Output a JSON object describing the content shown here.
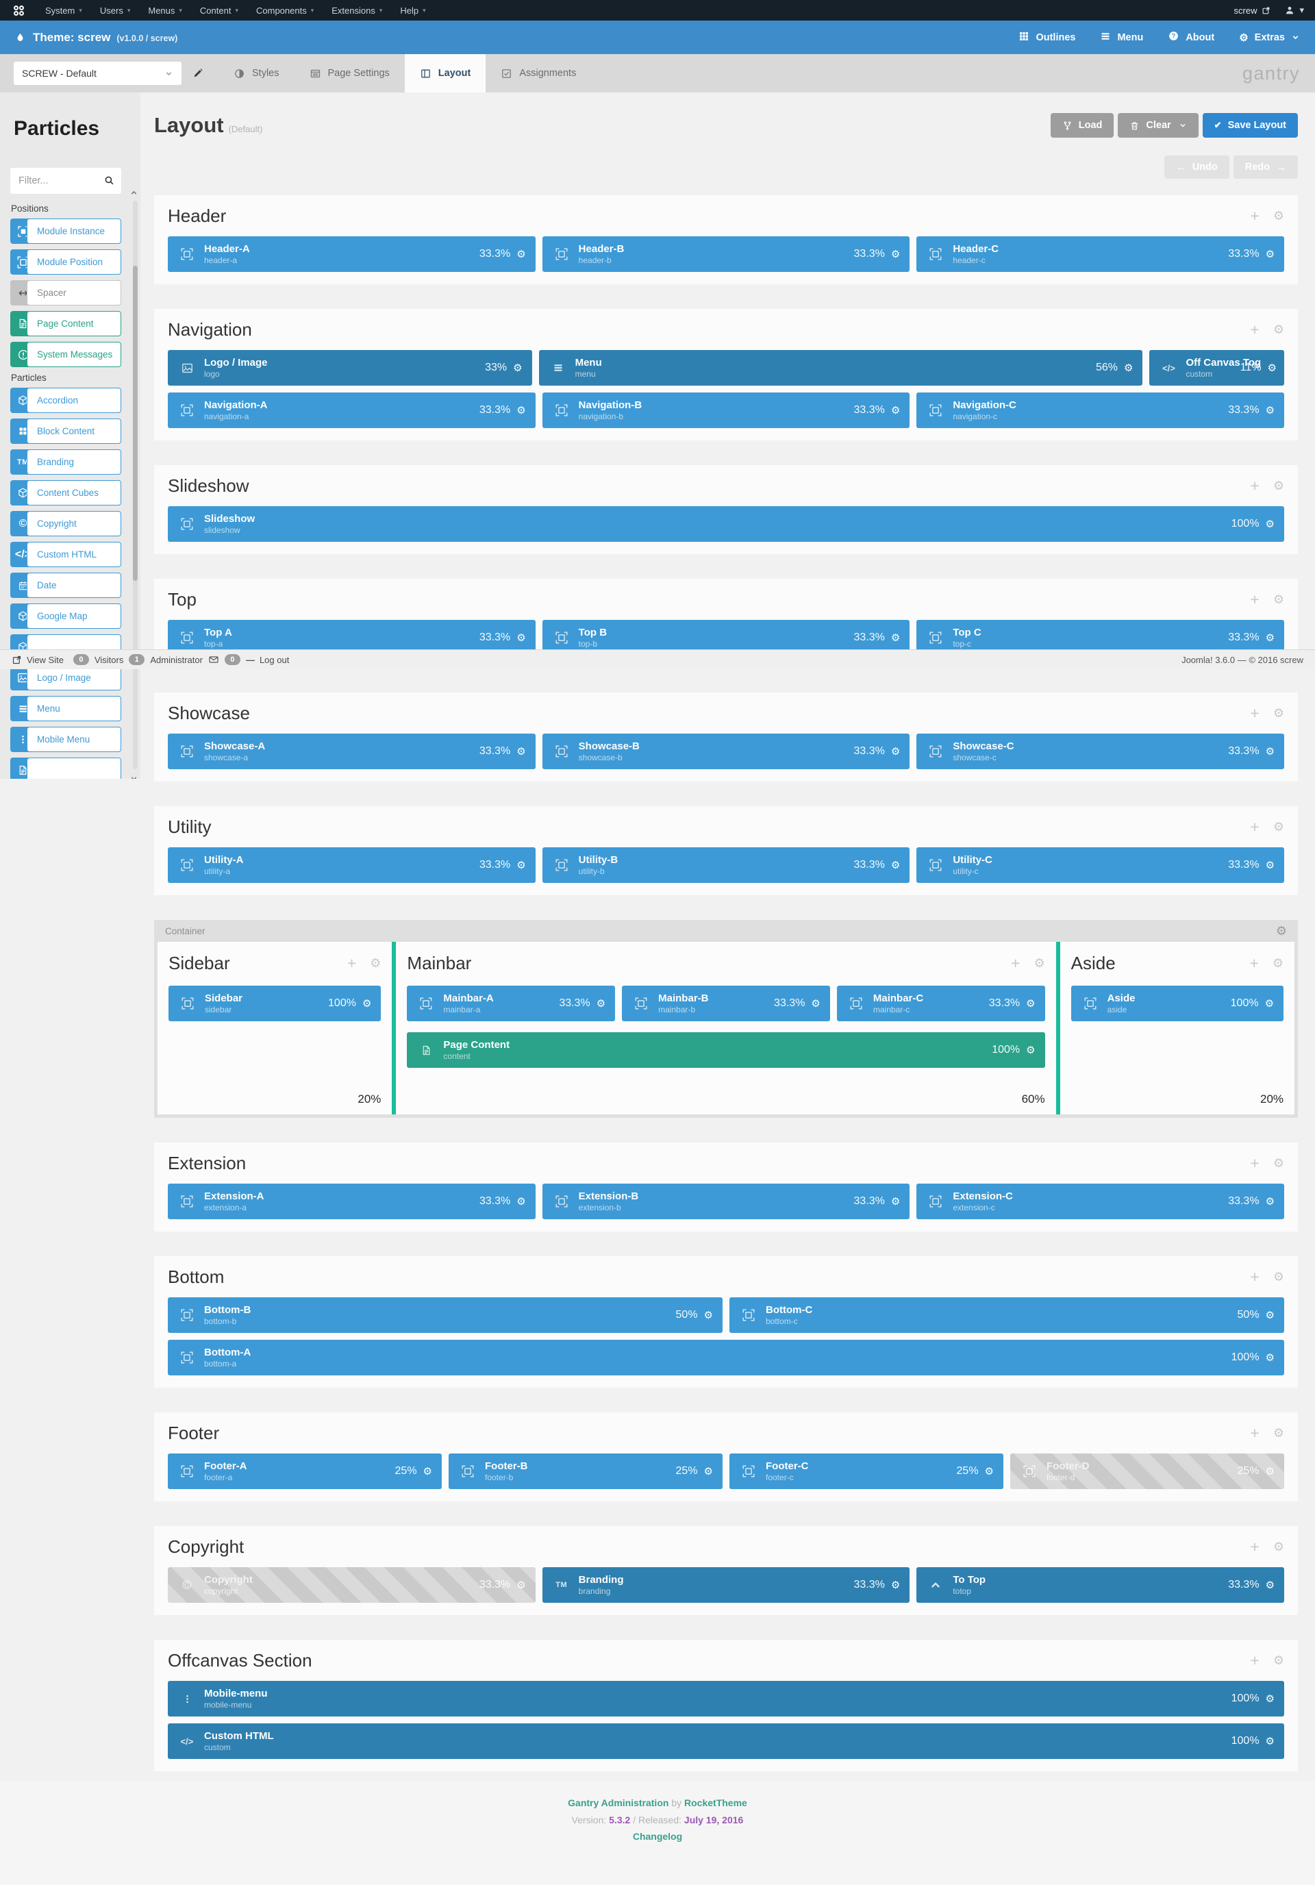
{
  "colors": {
    "position_blue": "#3d9ad6",
    "particle_blue": "#2e80b1",
    "content_green": "#2aa38a",
    "divider_teal": "#1abc9c",
    "save_blue": "#2f87d0",
    "header_blue": "#3e8cca",
    "footer_teal": "#3aa08d",
    "footer_purple": "#9c57b6"
  },
  "admin_nav": {
    "menus": [
      "System",
      "Users",
      "Menus",
      "Content",
      "Components",
      "Extensions",
      "Help"
    ],
    "site_link": "screw"
  },
  "theme_bar": {
    "title": "Theme: screw",
    "version": "(v1.0.0 / screw)",
    "actions": [
      "Outlines",
      "Menu",
      "About",
      "Extras"
    ]
  },
  "toolbar": {
    "outline_select": "SCREW - Default",
    "tabs": [
      "Styles",
      "Page Settings",
      "Layout",
      "Assignments"
    ],
    "active_tab": "Layout",
    "brand": "gantry"
  },
  "sidebar": {
    "title": "Particles",
    "filter_placeholder": "Filter...",
    "groups": [
      {
        "label": "Positions",
        "items": [
          {
            "label": "Module Instance",
            "style": "blue",
            "icon": "module-instance-icon"
          },
          {
            "label": "Module Position",
            "style": "blue",
            "icon": "module-position-icon"
          },
          {
            "label": "Spacer",
            "style": "gray",
            "icon": "arrows-horizontal-icon"
          },
          {
            "label": "Page Content",
            "style": "green",
            "icon": "document-icon"
          },
          {
            "label": "System Messages",
            "style": "green",
            "icon": "exclamation-icon"
          }
        ]
      },
      {
        "label": "Particles",
        "items": [
          {
            "label": "Accordion",
            "style": "blue",
            "icon": "cube-icon"
          },
          {
            "label": "Block Content",
            "style": "blue",
            "icon": "grid-icon"
          },
          {
            "label": "Branding",
            "style": "blue",
            "icon": "trademark-icon"
          },
          {
            "label": "Content Cubes",
            "style": "blue",
            "icon": "cube-icon"
          },
          {
            "label": "Copyright",
            "style": "blue",
            "icon": "copyright-icon"
          },
          {
            "label": "Custom HTML",
            "style": "blue",
            "icon": "code-icon"
          },
          {
            "label": "Date",
            "style": "blue",
            "icon": "calendar-icon"
          },
          {
            "label": "Google Map",
            "style": "blue",
            "icon": "cube-icon"
          },
          {
            "label": "",
            "style": "blue",
            "icon": "cube-icon"
          },
          {
            "label": "Logo / Image",
            "style": "blue",
            "icon": "image-icon"
          },
          {
            "label": "Menu",
            "style": "blue",
            "icon": "menu-icon"
          },
          {
            "label": "Mobile Menu",
            "style": "blue",
            "icon": "dots-vertical-icon"
          },
          {
            "label": "",
            "style": "blue",
            "icon": "document-icon"
          }
        ]
      }
    ]
  },
  "statusbar": {
    "view_site": "View Site",
    "visitors_count": "0",
    "visitors_label": "Visitors",
    "admin_count": "1",
    "admin_label": "Administrator",
    "messages_count": "0",
    "logout": "Log out",
    "right": "Joomla! 3.6.0 — © 2016 screw"
  },
  "layout": {
    "title": "Layout",
    "subtitle": "(Default)",
    "buttons": {
      "load": "Load",
      "clear": "Clear",
      "save": "Save Layout",
      "undo": "Undo",
      "redo": "Redo"
    },
    "blocks": [
      {
        "type": "section",
        "title": "Header",
        "rows": [
          [
            {
              "title": "Header-A",
              "subtitle": "header-a",
              "percent": "33.3%",
              "style": "position",
              "icon": "module-position-icon"
            },
            {
              "title": "Header-B",
              "subtitle": "header-b",
              "percent": "33.3%",
              "style": "position",
              "icon": "module-position-icon"
            },
            {
              "title": "Header-C",
              "subtitle": "header-c",
              "percent": "33.3%",
              "style": "position",
              "icon": "module-position-icon"
            }
          ]
        ]
      },
      {
        "type": "section",
        "title": "Navigation",
        "rows": [
          [
            {
              "title": "Logo / Image",
              "subtitle": "logo",
              "percent": "33%",
              "style": "particle",
              "icon": "image-icon"
            },
            {
              "title": "Menu",
              "subtitle": "menu",
              "percent": "56%",
              "style": "particle",
              "icon": "menu-icon"
            },
            {
              "title": "Off Canvas Tog",
              "subtitle": "custom",
              "percent": "11%",
              "style": "particle",
              "icon": "code-icon",
              "overlap": true
            }
          ],
          [
            {
              "title": "Navigation-A",
              "subtitle": "navigation-a",
              "percent": "33.3%",
              "style": "position",
              "icon": "module-position-icon"
            },
            {
              "title": "Navigation-B",
              "subtitle": "navigation-b",
              "percent": "33.3%",
              "style": "position",
              "icon": "module-position-icon"
            },
            {
              "title": "Navigation-C",
              "subtitle": "navigation-c",
              "percent": "33.3%",
              "style": "position",
              "icon": "module-position-icon"
            }
          ]
        ]
      },
      {
        "type": "section",
        "title": "Slideshow",
        "rows": [
          [
            {
              "title": "Slideshow",
              "subtitle": "slideshow",
              "percent": "100%",
              "style": "position",
              "icon": "module-position-icon"
            }
          ]
        ]
      },
      {
        "type": "section",
        "title": "Top",
        "rows": [
          [
            {
              "title": "Top A",
              "subtitle": "top-a",
              "percent": "33.3%",
              "style": "position",
              "icon": "module-position-icon"
            },
            {
              "title": "Top B",
              "subtitle": "top-b",
              "percent": "33.3%",
              "style": "position",
              "icon": "module-position-icon"
            },
            {
              "title": "Top C",
              "subtitle": "top-c",
              "percent": "33.3%",
              "style": "position",
              "icon": "module-position-icon"
            }
          ]
        ]
      },
      {
        "type": "section",
        "title": "Showcase",
        "rows": [
          [
            {
              "title": "Showcase-A",
              "subtitle": "showcase-a",
              "percent": "33.3%",
              "style": "position",
              "icon": "module-position-icon"
            },
            {
              "title": "Showcase-B",
              "subtitle": "showcase-b",
              "percent": "33.3%",
              "style": "position",
              "icon": "module-position-icon"
            },
            {
              "title": "Showcase-C",
              "subtitle": "showcase-c",
              "percent": "33.3%",
              "style": "position",
              "icon": "module-position-icon"
            }
          ]
        ]
      },
      {
        "type": "section",
        "title": "Utility",
        "rows": [
          [
            {
              "title": "Utility-A",
              "subtitle": "utility-a",
              "percent": "33.3%",
              "style": "position",
              "icon": "module-position-icon"
            },
            {
              "title": "Utility-B",
              "subtitle": "utility-b",
              "percent": "33.3%",
              "style": "position",
              "icon": "module-position-icon"
            },
            {
              "title": "Utility-C",
              "subtitle": "utility-c",
              "percent": "33.3%",
              "style": "position",
              "icon": "module-position-icon"
            }
          ]
        ]
      },
      {
        "type": "container",
        "label": "Container",
        "panels": [
          {
            "title": "Sidebar",
            "size": "20%",
            "size_value": 20,
            "rows": [
              [
                {
                  "title": "Sidebar",
                  "subtitle": "sidebar",
                  "percent": "100%",
                  "style": "position",
                  "icon": "module-position-icon"
                }
              ]
            ]
          },
          {
            "title": "Mainbar",
            "size": "60%",
            "size_value": 60,
            "rows": [
              [
                {
                  "title": "Mainbar-A",
                  "subtitle": "mainbar-a",
                  "percent": "33.3%",
                  "style": "position",
                  "icon": "module-position-icon"
                },
                {
                  "title": "Mainbar-B",
                  "subtitle": "mainbar-b",
                  "percent": "33.3%",
                  "style": "position",
                  "icon": "module-position-icon"
                },
                {
                  "title": "Mainbar-C",
                  "subtitle": "mainbar-c",
                  "percent": "33.3%",
                  "style": "position",
                  "icon": "module-position-icon"
                }
              ],
              [
                {
                  "title": "Page Content",
                  "subtitle": "content",
                  "percent": "100%",
                  "style": "content",
                  "icon": "document-icon"
                }
              ]
            ]
          },
          {
            "title": "Aside",
            "size": "20%",
            "size_value": 20,
            "rows": [
              [
                {
                  "title": "Aside",
                  "subtitle": "aside",
                  "percent": "100%",
                  "style": "position",
                  "icon": "module-position-icon"
                }
              ]
            ]
          }
        ]
      },
      {
        "type": "section",
        "title": "Extension",
        "rows": [
          [
            {
              "title": "Extension-A",
              "subtitle": "extension-a",
              "percent": "33.3%",
              "style": "position",
              "icon": "module-position-icon"
            },
            {
              "title": "Extension-B",
              "subtitle": "extension-b",
              "percent": "33.3%",
              "style": "position",
              "icon": "module-position-icon"
            },
            {
              "title": "Extension-C",
              "subtitle": "extension-c",
              "percent": "33.3%",
              "style": "position",
              "icon": "module-position-icon"
            }
          ]
        ]
      },
      {
        "type": "section",
        "title": "Bottom",
        "rows": [
          [
            {
              "title": "Bottom-B",
              "subtitle": "bottom-b",
              "percent": "50%",
              "style": "position",
              "icon": "module-position-icon"
            },
            {
              "title": "Bottom-C",
              "subtitle": "bottom-c",
              "percent": "50%",
              "style": "position",
              "icon": "module-position-icon"
            }
          ],
          [
            {
              "title": "Bottom-A",
              "subtitle": "bottom-a",
              "percent": "100%",
              "style": "position",
              "icon": "module-position-icon"
            }
          ]
        ]
      },
      {
        "type": "section",
        "title": "Footer",
        "rows": [
          [
            {
              "title": "Footer-A",
              "subtitle": "footer-a",
              "percent": "25%",
              "style": "position",
              "icon": "module-position-icon"
            },
            {
              "title": "Footer-B",
              "subtitle": "footer-b",
              "percent": "25%",
              "style": "position",
              "icon": "module-position-icon"
            },
            {
              "title": "Footer-C",
              "subtitle": "footer-c",
              "percent": "25%",
              "style": "position",
              "icon": "module-position-icon"
            },
            {
              "title": "Footer-D",
              "subtitle": "footer-d",
              "percent": "25%",
              "style": "disabled",
              "icon": "module-position-icon"
            }
          ]
        ]
      },
      {
        "type": "section",
        "title": "Copyright",
        "rows": [
          [
            {
              "title": "Copyright",
              "subtitle": "copyright",
              "percent": "33.3%",
              "style": "disabled",
              "icon": "copyright-icon"
            },
            {
              "title": "Branding",
              "subtitle": "branding",
              "percent": "33.3%",
              "style": "particle",
              "icon": "trademark-icon"
            },
            {
              "title": "To Top",
              "subtitle": "totop",
              "percent": "33.3%",
              "style": "particle",
              "icon": "chevron-up-icon"
            }
          ]
        ]
      },
      {
        "type": "section",
        "title": "Offcanvas Section",
        "rows": [
          [
            {
              "title": "Mobile-menu",
              "subtitle": "mobile-menu",
              "percent": "100%",
              "style": "particle",
              "icon": "dots-vertical-icon"
            }
          ],
          [
            {
              "title": "Custom HTML",
              "subtitle": "custom",
              "percent": "100%",
              "style": "particle",
              "icon": "code-icon"
            }
          ]
        ]
      }
    ]
  },
  "page_footer": {
    "brand": "Gantry Administration",
    "by": "by",
    "company": "RocketTheme",
    "version_label": "Version:",
    "version": "5.3.2",
    "released_label": "/ Released:",
    "released": "July 19, 2016",
    "changelog": "Changelog"
  }
}
